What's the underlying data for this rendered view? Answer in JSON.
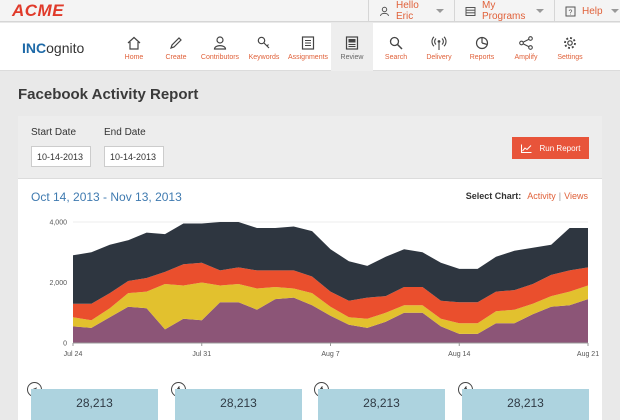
{
  "brand": "ACME",
  "topbar": {
    "user_label": "Hello Eric",
    "programs_label": "My Programs",
    "help_label": "Help"
  },
  "logo": {
    "bold": "INC",
    "rest": "ognito"
  },
  "nav": [
    {
      "label": "Home",
      "icon": "home-icon"
    },
    {
      "label": "Create",
      "icon": "pencil-icon"
    },
    {
      "label": "Contributors",
      "icon": "user-icon"
    },
    {
      "label": "Keywords",
      "icon": "key-icon"
    },
    {
      "label": "Assignments",
      "icon": "list-icon"
    },
    {
      "label": "Review",
      "icon": "document-icon"
    },
    {
      "label": "Search",
      "icon": "search-icon"
    },
    {
      "label": "Delivery",
      "icon": "broadcast-icon"
    },
    {
      "label": "Reports",
      "icon": "pie-chart-icon"
    },
    {
      "label": "Amplify",
      "icon": "share-icon"
    },
    {
      "label": "Settings",
      "icon": "gear-icon"
    }
  ],
  "page": {
    "title": "Facebook Activity Report"
  },
  "filters": {
    "start_label": "Start Date",
    "start_value": "10-14-2013",
    "end_label": "End Date",
    "end_value": "10-14-2013",
    "run_label": "Run Report"
  },
  "chart_header": {
    "range": "Oct 14, 2013 - Nov 13, 2013",
    "select_label": "Select Chart:",
    "option_activity": "Activity",
    "separator": "|",
    "option_views": "Views"
  },
  "chart_data": {
    "type": "area",
    "stacked": true,
    "title": "",
    "xlabel": "",
    "ylabel": "",
    "ylim": [
      0,
      4000
    ],
    "yticks": [
      "0",
      "2,000",
      "4,000"
    ],
    "xticks": [
      {
        "label": "Jul 24",
        "index": 0
      },
      {
        "label": "Jul 31",
        "index": 7
      },
      {
        "label": "Aug 7",
        "index": 14
      },
      {
        "label": "Aug 14",
        "index": 21
      },
      {
        "label": "Aug 21",
        "index": 28
      }
    ],
    "x_count": 29,
    "series": [
      {
        "name": "purple",
        "color": "#8c5577",
        "values": [
          550,
          500,
          850,
          1200,
          1150,
          450,
          800,
          750,
          1350,
          1350,
          1100,
          1450,
          1500,
          1250,
          900,
          600,
          500,
          700,
          1000,
          1000,
          550,
          300,
          300,
          650,
          650,
          950,
          1200,
          1250,
          1450
        ]
      },
      {
        "name": "yellow",
        "color": "#e2c12e",
        "values": [
          300,
          250,
          300,
          450,
          550,
          1500,
          1100,
          1250,
          550,
          600,
          700,
          400,
          300,
          400,
          300,
          250,
          300,
          300,
          250,
          250,
          250,
          350,
          350,
          400,
          450,
          350,
          350,
          450,
          450
        ]
      },
      {
        "name": "orange",
        "color": "#ea4f2d",
        "values": [
          450,
          550,
          500,
          400,
          450,
          400,
          700,
          650,
          500,
          550,
          600,
          550,
          600,
          550,
          500,
          550,
          700,
          550,
          600,
          600,
          600,
          700,
          700,
          650,
          650,
          650,
          700,
          700,
          600
        ]
      },
      {
        "name": "navy",
        "color": "#2e3640",
        "values": [
          1600,
          1700,
          1600,
          1350,
          1500,
          1250,
          1350,
          1300,
          1600,
          1500,
          1400,
          1400,
          1450,
          1500,
          1400,
          1300,
          1050,
          1300,
          1250,
          1150,
          1250,
          1100,
          1100,
          1150,
          1300,
          1200,
          1000,
          1400,
          1300
        ]
      }
    ]
  },
  "stats": [
    {
      "icon": "share-icon",
      "glyph": "<",
      "value": "28,213"
    },
    {
      "icon": "facebook-icon",
      "glyph": "f",
      "value": "28,213"
    },
    {
      "icon": "facebook-icon",
      "glyph": "f",
      "value": "28,213"
    },
    {
      "icon": "facebook-icon",
      "glyph": "f",
      "value": "28,213"
    }
  ]
}
